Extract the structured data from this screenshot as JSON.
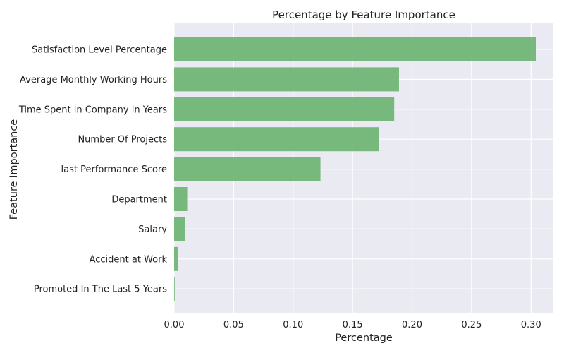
{
  "chart_data": {
    "type": "bar",
    "orientation": "horizontal",
    "title": "Percentage by Feature Importance",
    "xlabel": "Percentage",
    "ylabel": "Feature Importance",
    "xlim": [
      0,
      0.31
    ],
    "xticks": [
      "0.00",
      "0.05",
      "0.10",
      "0.15",
      "0.20",
      "0.25",
      "0.30"
    ],
    "categories": [
      "Satisfaction Level Percentage",
      "Average Monthly Working Hours",
      "Time Spent in Company in Years",
      "Number Of Projects",
      "last Performance Score",
      "Department",
      "Salary",
      "Accident at Work",
      "Promoted In The Last 5 Years"
    ],
    "values": [
      0.304,
      0.189,
      0.185,
      0.172,
      0.123,
      0.011,
      0.009,
      0.003,
      0.0005
    ],
    "grid": true,
    "bar_color": "#6ab26f",
    "background_color": "#eaeaf2"
  }
}
